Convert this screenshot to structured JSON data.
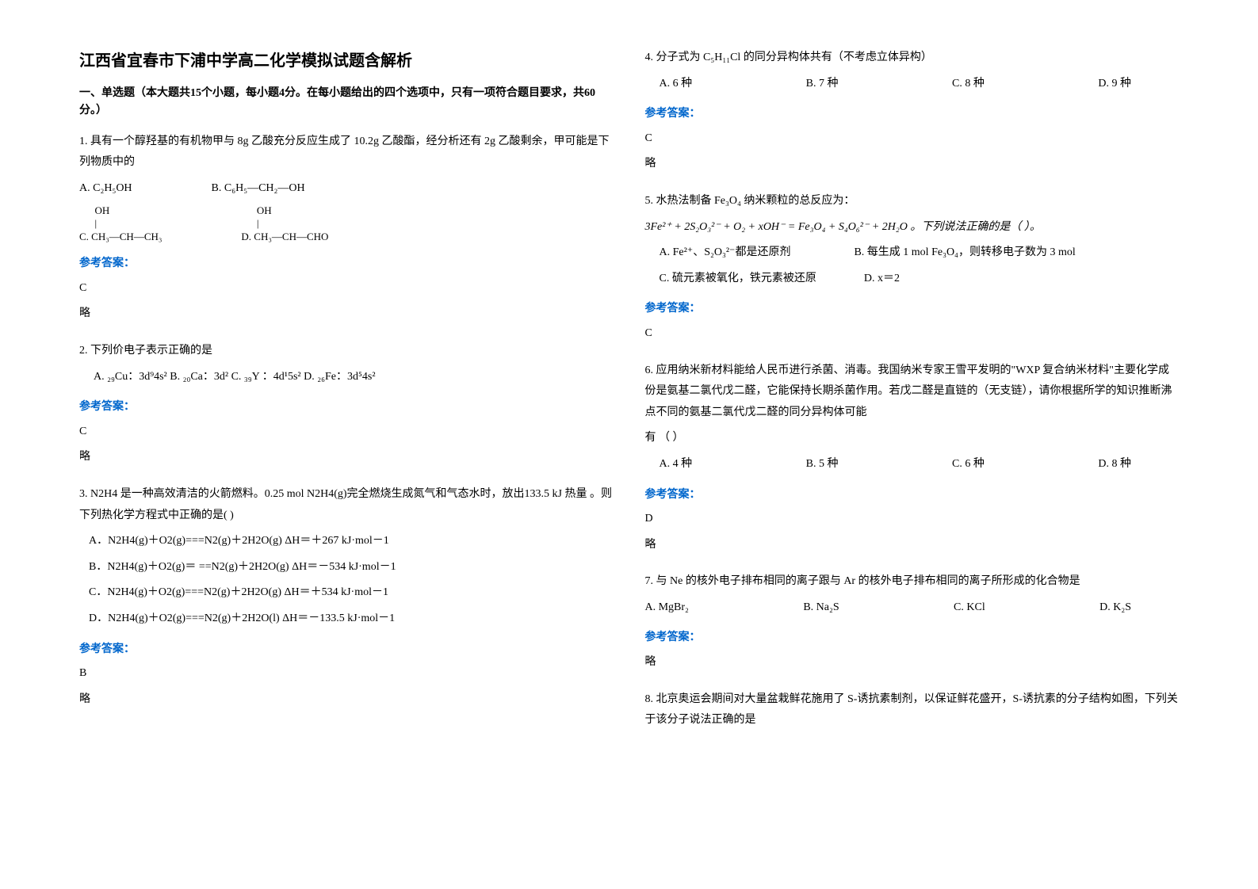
{
  "title": "江西省宜春市下浦中学高二化学模拟试题含解析",
  "sectionIntro": "一、单选题（本大题共15个小题，每小题4分。在每小题给出的四个选项中，只有一项符合题目要求，共60分。）",
  "answerLabel": "参考答案：",
  "q1": {
    "body": "1. 具有一个醇羟基的有机物甲与 8g 乙酸充分反应生成了 10.2g 乙酸酯，经分析还有 2g 乙酸剩余，甲可能是下列物质中的",
    "optA": "A. C₂H₅OH",
    "optB": "B. C₆H₅—CH₂—OH",
    "optC_l1": "      OH",
    "optC_l2": "      |",
    "optC_l3": "C. CH₃—CH—CH₃",
    "optD_l1": "      OH",
    "optD_l2": "      |",
    "optD_l3": "D. CH₃—CH—CHO",
    "ans": "C",
    "extra": "略"
  },
  "q2": {
    "body": "2. 下列价电子表示正确的是",
    "opts": "A. ₂₉Cu：3d⁹4s²   B. ₂₀Ca：3d²   C. ₃₉Y ：4d¹5s²   D. ₂₆Fe：3d⁵4s²",
    "ans": "C",
    "extra": "略"
  },
  "q3": {
    "body": "3. N2H4 是一种高效清洁的火箭燃料。0.25 mol N2H4(g)完全燃烧生成氮气和气态水时，放出133.5 kJ 热量 。则下列热化学方程式中正确的是(      )",
    "optA": "A．N2H4(g)＋O2(g)===N2(g)＋2H2O(g)      ΔH＝＋267 kJ·mol－1",
    "optB": "B．N2H4(g)＋O2(g)＝ ==N2(g)＋2H2O(g)     ΔH＝－534 kJ·mol－1",
    "optC": "C．N2H4(g)＋O2(g)===N2(g)＋2H2O(g)      ΔH＝＋534 kJ·mol－1",
    "optD": "D．N2H4(g)＋O2(g)===N2(g)＋2H2O(l)      ΔH＝－133.5 kJ·mol－1",
    "ans": "B",
    "extra": "略"
  },
  "q4": {
    "body": "4.   分子式为 C₅H₁₁Cl 的同分异构体共有（不考虑立体异构）",
    "optA": "A. 6 种",
    "optB": "B. 7 种",
    "optC": "C.  8 种",
    "optD": "D. 9 种",
    "ans": "C",
    "extra": "略"
  },
  "q5": {
    "body": "5. 水热法制备 Fe₃O₄ 纳米颗粒的总反应为：",
    "eq": "3Fe²⁺ + 2S₂O₃²⁻ + O₂ + xOH⁻ = Fe₃O₄ + S₄O₆²⁻ + 2H₂O 。下列说法正确的是（        ）。",
    "optA": "A. Fe²⁺、S₂O₃²⁻都是还原剂",
    "optB": "B. 每生成 1 mol Fe₃O₄，则转移电子数为 3 mol",
    "optC": "C. 硫元素被氧化，铁元素被还原",
    "optD": "D.  x＝2",
    "ans": "C"
  },
  "q6": {
    "body": "6. 应用纳米新材料能给人民币进行杀菌、消毒。我国纳米专家王雪平发明的\"WXP 复合纳米材料\"主要化学成份是氨基二氯代戊二醛，它能保持长期杀菌作用。若戊二醛是直链的（无支链），请你根据所学的知识推断沸点不同的氨基二氯代戊二醛的同分异构体可能",
    "body2": "有                                              （        ）",
    "optA": "A. 4 种",
    "optB": "B. 5 种",
    "optC": "C. 6 种",
    "optD": "D. 8 种",
    "ans": "D",
    "extra": "略"
  },
  "q7": {
    "body": "7. 与 Ne 的核外电子排布相同的离子跟与 Ar 的核外电子排布相同的离子所形成的化合物是",
    "optA": "A. MgBr₂",
    "optB": "B. Na₂S",
    "optC": "C. KCl",
    "optD": "D. K₂S",
    "ans": "略"
  },
  "q8": {
    "body": "8. 北京奥运会期间对大量盆栽鲜花施用了 S-诱抗素制剂，以保证鲜花盛开，S-诱抗素的分子结构如图，下列关于该分子说法正确的是"
  }
}
